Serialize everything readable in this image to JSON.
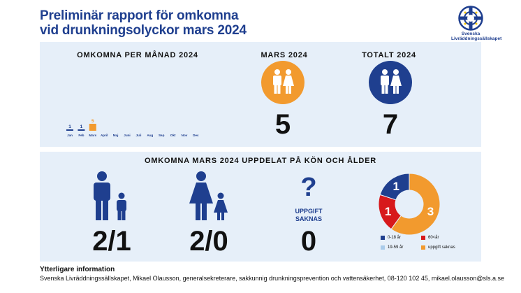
{
  "title": {
    "line1": "Preliminär rapport för omkomna",
    "line2": "vid drunkningsolyckor mars 2024"
  },
  "logo": {
    "icon": "lifebuoy-cross-icon",
    "line1": "Svenska",
    "line2": "Livräddningssällskapet"
  },
  "monthly": {
    "heading": "OMKOMNA PER MÅNAD 2024",
    "chart_data": {
      "type": "bar",
      "categories": [
        "Jan",
        "Feb",
        "Mars",
        "April",
        "Maj",
        "Juni",
        "Juli",
        "Aug",
        "Sep",
        "Okt",
        "Nov",
        "Dec"
      ],
      "values": [
        1,
        1,
        5,
        null,
        null,
        null,
        null,
        null,
        null,
        null,
        null,
        null
      ],
      "highlight_category": "Mars",
      "colors": {
        "default": "#1f3f8f",
        "highlight": "#f29a2e"
      }
    }
  },
  "march": {
    "heading": "MARS 2024",
    "value": "5",
    "color": "#f29a2e",
    "icon": "man-woman-icon"
  },
  "total": {
    "heading": "TOTALT 2024",
    "value": "7",
    "color": "#1f3f8f",
    "icon": "man-woman-icon"
  },
  "breakdown": {
    "heading": "OMKOMNA MARS 2024 UPPDELAT PÅ KÖN OCH ÅLDER",
    "men": {
      "value": "2/1",
      "icon": "man-boy-icon"
    },
    "women": {
      "value": "2/0",
      "icon": "woman-girl-icon"
    },
    "unknown": {
      "symbol": "?",
      "label_line1": "UPPGIFT",
      "label_line2": "SAKNAS",
      "value": "0"
    },
    "chart_data": {
      "type": "pie",
      "labels": [
        "0-18 år",
        "60< år",
        "19-59 år",
        "uppgift saknas"
      ],
      "values": [
        1,
        1,
        0,
        3
      ],
      "colors": [
        "#1f3f8f",
        "#d7191c",
        "#a9cbea",
        "#f29a2e"
      ]
    },
    "legend": [
      {
        "label": "0-18 år",
        "color": "#1f3f8f"
      },
      {
        "label": "60<år",
        "color": "#d7191c"
      },
      {
        "label": "19-59 år",
        "color": "#a9cbea"
      },
      {
        "label": "uppgift saknas",
        "color": "#f29a2e"
      }
    ]
  },
  "footer": {
    "title": "Ytterligare information",
    "text": "Svenska Livräddningssällskapet, Mikael Olausson, generalsekreterare, sakkunnig drunkningsprevention och vattensäkerhet, 08-120 102 45, mikael.olausson@sls.a.se"
  }
}
